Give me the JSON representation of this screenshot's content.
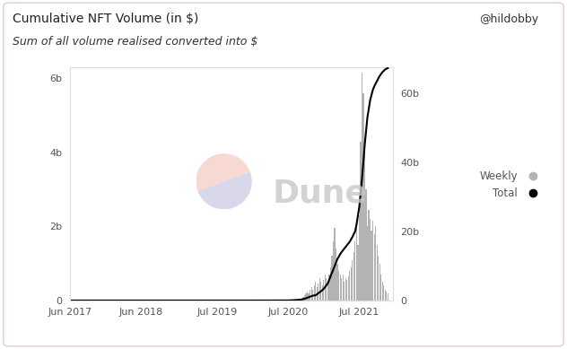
{
  "chart_data": {
    "type": "bar",
    "title": "Cumulative NFT Volume (in $)",
    "subtitle": "Sum of all volume realised converted into $",
    "author": "@hildobby",
    "watermark": "Dune",
    "x": [
      2017.45,
      2018.0,
      2018.5,
      2019.0,
      2019.5,
      2020.0,
      2020.5,
      2020.519,
      2020.538,
      2020.558,
      2020.577,
      2020.596,
      2020.615,
      2020.635,
      2020.654,
      2020.673,
      2020.692,
      2020.712,
      2020.731,
      2020.75,
      2020.769,
      2020.788,
      2020.808,
      2020.827,
      2020.846,
      2020.865,
      2020.885,
      2020.904,
      2020.923,
      2020.942,
      2020.962,
      2020.981,
      2021.0,
      2021.019,
      2021.038,
      2021.058,
      2021.077,
      2021.096,
      2021.115,
      2021.135,
      2021.154,
      2021.173,
      2021.192,
      2021.212,
      2021.231,
      2021.25,
      2021.269,
      2021.288,
      2021.308,
      2021.327,
      2021.346,
      2021.365,
      2021.385,
      2021.404,
      2021.423,
      2021.442,
      2021.462,
      2021.481,
      2021.5,
      2021.519,
      2021.538,
      2021.558,
      2021.577,
      2021.596,
      2021.615,
      2021.635,
      2021.654,
      2021.673,
      2021.692,
      2021.712,
      2021.731,
      2021.75,
      2021.769,
      2021.788,
      2021.808,
      2021.827,
      2021.846,
      2021.865,
      2021.885,
      2021.904
    ],
    "series": [
      {
        "name": "Weekly",
        "type": "bar",
        "color": "#b3b3b3",
        "marker": "o",
        "values": [
          0,
          0,
          0,
          0,
          0,
          0,
          0.01,
          0.01,
          0.01,
          0.02,
          0.02,
          0.02,
          0.03,
          0.03,
          0.04,
          0.05,
          0.08,
          0.1,
          0.15,
          0.2,
          0.25,
          0.2,
          0.3,
          0.35,
          0.3,
          0.4,
          0.5,
          0.35,
          0.45,
          0.6,
          0.5,
          0.4,
          0.55,
          0.7,
          0.6,
          0.5,
          0.7,
          0.9,
          1.2,
          1.6,
          1.95,
          1.4,
          1.0,
          0.8,
          0.7,
          0.6,
          0.7,
          0.5,
          0.6,
          0.55,
          0.65,
          0.8,
          0.9,
          1.1,
          1.3,
          1.6,
          2.0,
          1.5,
          2.3,
          4.3,
          6.15,
          5.6,
          4.2,
          3.0,
          2.0,
          2.45,
          2.2,
          1.9,
          2.15,
          1.8,
          2.0,
          1.5,
          1.2,
          1.0,
          0.7,
          0.5,
          0.4,
          0.3,
          0.25,
          0.2
        ]
      },
      {
        "name": "Total",
        "type": "line",
        "axis": "y2",
        "color": "#000000",
        "marker": "o",
        "values": [
          0,
          0,
          0,
          0,
          0,
          0,
          0.02,
          0.04,
          0.06,
          0.08,
          0.1,
          0.12,
          0.15,
          0.18,
          0.22,
          0.26,
          0.3,
          0.4,
          0.5,
          0.65,
          0.8,
          0.95,
          1.1,
          1.25,
          1.4,
          1.45,
          1.5,
          1.8,
          2.1,
          2.4,
          2.7,
          3.0,
          3.4,
          3.9,
          4.4,
          5.0,
          6.0,
          7.0,
          8.0,
          9.0,
          10.0,
          11.0,
          12.0,
          12.7,
          13.4,
          14.0,
          14.5,
          15.0,
          15.5,
          16.0,
          16.5,
          17.0,
          17.7,
          18.4,
          19.2,
          20.0,
          22.0,
          24.5,
          27.0,
          31.0,
          35.0,
          40.0,
          45.0,
          49.0,
          53.0,
          55.5,
          58.0,
          59.5,
          61.0,
          62.0,
          62.8,
          63.5,
          64.3,
          65.0,
          65.6,
          66.1,
          66.5,
          66.9,
          67.1,
          67.3
        ]
      }
    ],
    "xlim": [
      2017.42,
      2021.975
    ],
    "xticks": [
      {
        "value": 2017.42,
        "label": "Jun 2017"
      },
      {
        "value": 2018.42,
        "label": "Jun 2018"
      },
      {
        "value": 2019.5,
        "label": "Jul 2019"
      },
      {
        "value": 2020.5,
        "label": "Jul 2020"
      },
      {
        "value": 2021.5,
        "label": "Jul 2021"
      }
    ],
    "ylim": [
      0,
      6.3
    ],
    "yticks": [
      0,
      {
        "value": 2,
        "label": "2b"
      },
      {
        "value": 4,
        "label": "4b"
      },
      {
        "value": 6,
        "label": "6b"
      }
    ],
    "y2lim": [
      0,
      67.5
    ],
    "y2ticks": [
      0,
      {
        "value": 20,
        "label": "20b"
      },
      {
        "value": 40,
        "label": "40b"
      },
      {
        "value": 60,
        "label": "60b"
      }
    ],
    "grid": false,
    "legend": "right"
  }
}
